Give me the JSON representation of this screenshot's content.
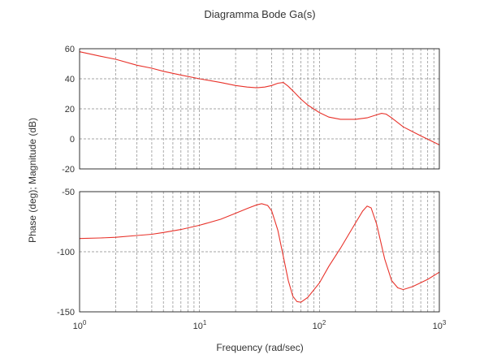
{
  "chart_data": [
    {
      "type": "line",
      "panel": "magnitude",
      "title": "Diagramma Bode Ga(s)",
      "xscale": "log",
      "xlim": [
        1,
        1000
      ],
      "ylim": [
        -20,
        60
      ],
      "yticks": [
        -20,
        0,
        20,
        40,
        60
      ],
      "grid": true,
      "series": [
        {
          "x": [
            1,
            1.5,
            2,
            3,
            4,
            5,
            7,
            10,
            15,
            20,
            25,
            30,
            35,
            40,
            45,
            50,
            55,
            60,
            70,
            80,
            100,
            120,
            150,
            200,
            250,
            300,
            330,
            360,
            400,
            500,
            700,
            1000
          ],
          "values": [
            58,
            55,
            53,
            49,
            47,
            45,
            42.5,
            40,
            37.5,
            35.5,
            34.5,
            34,
            34.5,
            35.5,
            37,
            37.5,
            35,
            32,
            26.5,
            22.5,
            17.5,
            14.5,
            13,
            13,
            14,
            16,
            17,
            16.5,
            14,
            8,
            2,
            -4
          ]
        }
      ]
    },
    {
      "type": "line",
      "panel": "phase",
      "xscale": "log",
      "xlim": [
        1,
        1000
      ],
      "ylim": [
        -150,
        -50
      ],
      "yticks": [
        -150,
        -100,
        -50
      ],
      "xlabel": "Frequency (rad/sec)",
      "ylabel": "Phase (deg); Magnitude (dB)",
      "grid": true,
      "series": [
        {
          "x": [
            1,
            1.5,
            2,
            3,
            4,
            5,
            7,
            10,
            15,
            20,
            25,
            30,
            33,
            37,
            40,
            45,
            50,
            55,
            60,
            65,
            70,
            80,
            100,
            120,
            150,
            200,
            230,
            250,
            270,
            300,
            350,
            400,
            450,
            500,
            600,
            800,
            1000
          ],
          "values": [
            -89,
            -88.5,
            -88,
            -86.5,
            -85.5,
            -84,
            -81.5,
            -78,
            -73,
            -68,
            -64,
            -61,
            -60,
            -61.5,
            -66,
            -82,
            -104,
            -124,
            -137,
            -141.5,
            -142,
            -138,
            -126,
            -112,
            -97,
            -76,
            -66,
            -62,
            -63.5,
            -77,
            -106,
            -124,
            -130,
            -131.5,
            -129,
            -123,
            -117
          ]
        }
      ]
    }
  ],
  "axes_text": {
    "title": "Diagramma Bode Ga(s)",
    "xlabel": "Frequency (rad/sec)",
    "ylabel": "Phase (deg); Magnitude (dB)",
    "xtick_base": "10",
    "xtick_exponents": [
      "0",
      "1",
      "2",
      "3"
    ],
    "mag_tick_labels": [
      "60",
      "40",
      "20",
      "0",
      "-20"
    ],
    "phase_tick_labels": [
      "-50",
      "-100",
      "-150"
    ]
  },
  "colors": {
    "series": "#e8322a",
    "grid": "#888888",
    "frame": "#000000",
    "text": "#333333"
  }
}
